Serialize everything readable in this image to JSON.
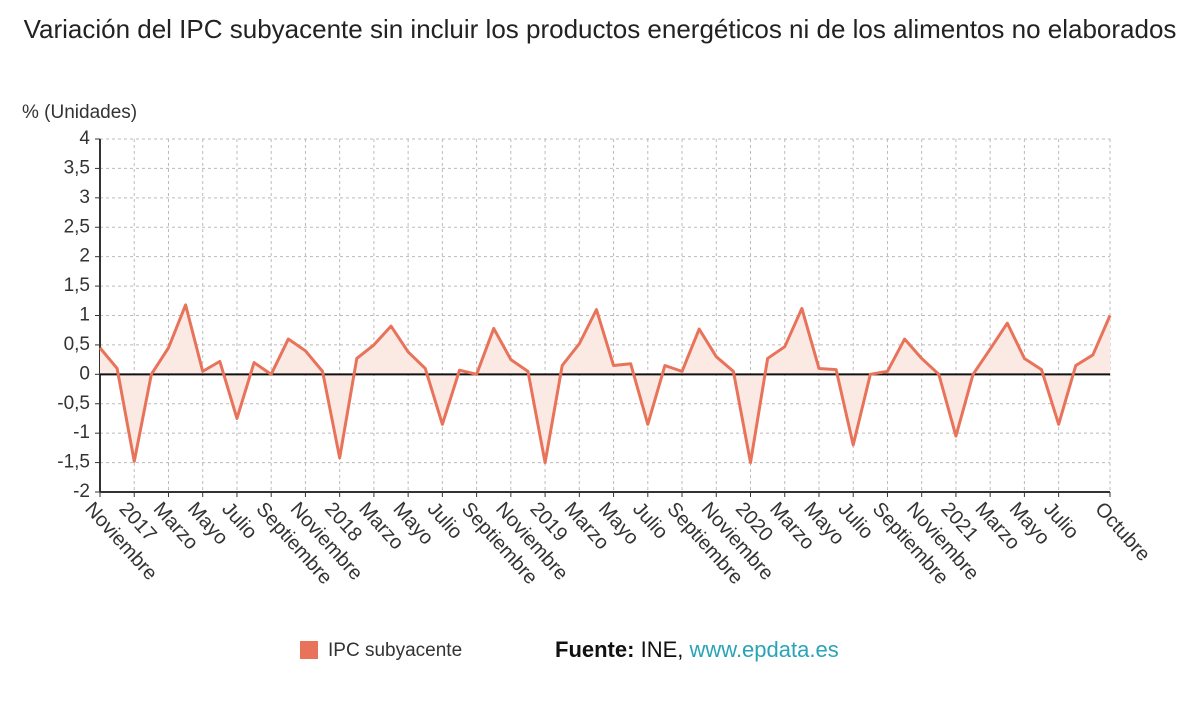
{
  "chart_data": {
    "type": "line",
    "title": "Variación del IPC subyacente sin incluir los productos energéticos ni de los alimentos no elaborados",
    "y_label": "% (Unidades)",
    "categories": [
      "Noviembre",
      null,
      "2017",
      null,
      "Marzo",
      null,
      "Mayo",
      null,
      "Julio",
      null,
      "Septiembre",
      null,
      "Noviembre",
      null,
      "2018",
      null,
      "Marzo",
      null,
      "Mayo",
      null,
      "Julio",
      null,
      "Septiembre",
      null,
      "Noviembre",
      null,
      "2019",
      null,
      "Marzo",
      null,
      "Mayo",
      null,
      "Julio",
      null,
      "Septiembre",
      null,
      "Noviembre",
      null,
      "2020",
      null,
      "Marzo",
      null,
      "Mayo",
      null,
      "Julio",
      null,
      "Septiembre",
      null,
      "Noviembre",
      null,
      "2021",
      null,
      "Marzo",
      null,
      "Mayo",
      null,
      "Julio",
      null,
      null,
      "Octubre"
    ],
    "series": [
      {
        "name": "IPC subyacente",
        "color": "#e8735a",
        "fill": "#fbe9e4",
        "values": [
          0.45,
          0.1,
          -1.48,
          0.0,
          0.45,
          1.18,
          0.05,
          0.22,
          -0.75,
          0.2,
          0.0,
          0.6,
          0.4,
          0.05,
          -1.42,
          0.27,
          0.5,
          0.82,
          0.38,
          0.1,
          -0.85,
          0.07,
          0.0,
          0.78,
          0.25,
          0.05,
          -1.5,
          0.15,
          0.52,
          1.1,
          0.15,
          0.18,
          -0.85,
          0.15,
          0.05,
          0.77,
          0.3,
          0.05,
          -1.5,
          0.27,
          0.47,
          1.12,
          0.1,
          0.08,
          -1.2,
          0.0,
          0.05,
          0.6,
          0.27,
          0.0,
          -1.05,
          0.0,
          0.43,
          0.87,
          0.27,
          0.08,
          -0.85,
          0.15,
          0.33,
          1.0
        ]
      }
    ],
    "ylim": [
      -2,
      4
    ],
    "yticks": [
      -2,
      {
        "value": -1.5,
        "label": "-1,5"
      },
      -1,
      {
        "value": -0.5,
        "label": "-0,5"
      },
      0,
      {
        "value": 0.5,
        "label": "0,5"
      },
      1,
      {
        "value": 1.5,
        "label": "1,5"
      },
      2,
      {
        "value": 2.5,
        "label": "2,5"
      },
      3,
      {
        "value": 3.5,
        "label": "3,5"
      },
      4
    ],
    "grid": true,
    "source": {
      "label": "Fuente:",
      "text": "INE,",
      "link": "www.epdata.es"
    }
  }
}
